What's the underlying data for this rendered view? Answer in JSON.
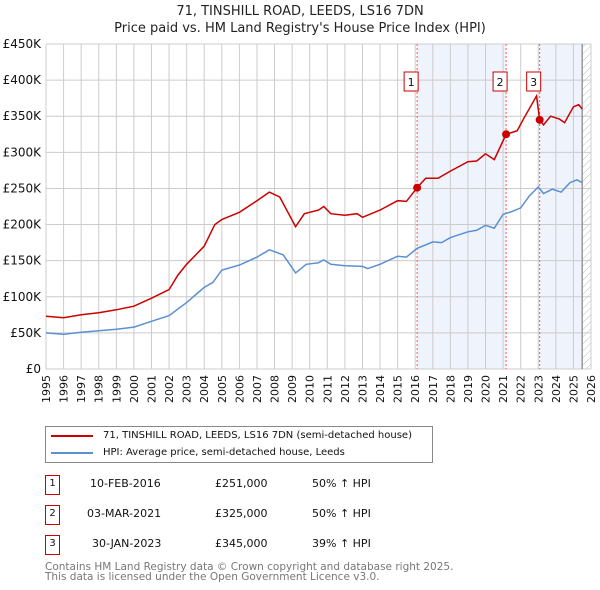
{
  "chart_data": {
    "type": "line",
    "title": "71, TINSHILL ROAD, LEEDS, LS16 7DN",
    "subtitle": "Price paid vs. HM Land Registry's House Price Index (HPI)",
    "xlim": [
      1995,
      2026
    ],
    "ylim": [
      0,
      450000
    ],
    "x_ticks": [
      "1995",
      "1996",
      "1997",
      "1998",
      "1999",
      "2000",
      "2001",
      "2002",
      "2003",
      "2004",
      "2005",
      "2006",
      "2007",
      "2008",
      "2009",
      "2010",
      "2011",
      "2012",
      "2013",
      "2014",
      "2015",
      "2016",
      "2017",
      "2018",
      "2019",
      "2020",
      "2021",
      "2022",
      "2023",
      "2024",
      "2025",
      "2026"
    ],
    "y_ticks": [
      "£0",
      "£50K",
      "£100K",
      "£150K",
      "£200K",
      "£250K",
      "£300K",
      "£350K",
      "£400K",
      "£450K"
    ],
    "grid": true,
    "series": [
      {
        "name": "71, TINSHILL ROAD, LEEDS, LS16 7DN (semi-detached house)",
        "color": "#cc0000",
        "x": [
          1995,
          1996,
          1997,
          1998,
          1999,
          2000,
          2001,
          2002,
          2002.5,
          2003,
          2004,
          2004.6,
          2005,
          2006,
          2007,
          2007.7,
          2008.3,
          2009.2,
          2009.7,
          2010.5,
          2010.8,
          2011.2,
          2012,
          2012.7,
          2013,
          2014,
          2015,
          2015.5,
          2016.11,
          2016.6,
          2017.3,
          2018,
          2019,
          2019.5,
          2020,
          2020.5,
          2021.17,
          2021.8,
          2022.2,
          2022.9,
          2023.08,
          2023.3,
          2023.7,
          2024.2,
          2024.5,
          2025,
          2025.3,
          2025.5
        ],
        "y": [
          73,
          71,
          75,
          78,
          82,
          87,
          98,
          110,
          130,
          145,
          170,
          200,
          207,
          217,
          233,
          245,
          238,
          197,
          215,
          220,
          225,
          215,
          213,
          215,
          210,
          220,
          233,
          232,
          251,
          264,
          264,
          274,
          287,
          288,
          298,
          290,
          325,
          330,
          348,
          378,
          345,
          338,
          350,
          346,
          341,
          363,
          366,
          360
        ]
      },
      {
        "name": "HPI: Average price, semi-detached house, Leeds",
        "color": "#5b8fd4",
        "x": [
          1995,
          1996,
          1997,
          1998,
          1999,
          2000,
          2001,
          2002,
          2003,
          2004,
          2004.5,
          2005,
          2006,
          2007,
          2007.7,
          2008.5,
          2009.2,
          2009.8,
          2010.5,
          2010.8,
          2011.2,
          2012,
          2013,
          2013.3,
          2014,
          2015,
          2015.5,
          2016.1,
          2017,
          2017.5,
          2018,
          2019,
          2019.5,
          2020,
          2020.5,
          2021,
          2021.5,
          2022,
          2022.5,
          2023,
          2023.3,
          2023.8,
          2024.3,
          2024.8,
          2025.2,
          2025.5
        ],
        "y": [
          50,
          48,
          51,
          53,
          55,
          58,
          66,
          74,
          92,
          113,
          120,
          137,
          144,
          155,
          165,
          158,
          133,
          145,
          147,
          151,
          145,
          143,
          142,
          139,
          145,
          156,
          155,
          167,
          176,
          175,
          182,
          190,
          192,
          199,
          195,
          214,
          218,
          223,
          240,
          252,
          243,
          249,
          245,
          258,
          262,
          258
        ]
      }
    ],
    "y_unit": "thousand GBP",
    "sales": [
      {
        "label": "1",
        "x": 2016.11,
        "y": 251
      },
      {
        "label": "2",
        "x": 2021.17,
        "y": 325
      },
      {
        "label": "3",
        "x": 2023.08,
        "y": 345
      }
    ],
    "legend_position": "below"
  },
  "table": [
    {
      "num": "1",
      "date": "10-FEB-2016",
      "price": "£251,000",
      "hpi": "50% ↑ HPI"
    },
    {
      "num": "2",
      "date": "03-MAR-2021",
      "price": "£325,000",
      "hpi": "50% ↑ HPI"
    },
    {
      "num": "3",
      "date": "30-JAN-2023",
      "price": "£345,000",
      "hpi": "39% ↑ HPI"
    }
  ],
  "footer": {
    "line1": "Contains HM Land Registry data © Crown copyright and database right 2025.",
    "line2": "This data is licensed under the Open Government Licence v3.0."
  }
}
